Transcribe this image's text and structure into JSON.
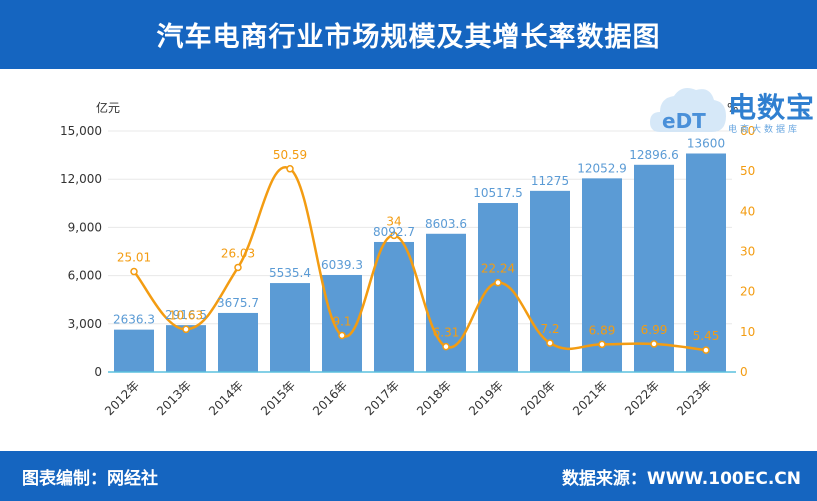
{
  "header": {
    "title": "汽车电商行业市场规模及其增长率数据图"
  },
  "footer": {
    "left": "图表编制：网经社",
    "right": "数据来源：WWW.100EC.CN"
  },
  "logo": {
    "main": "电数宝",
    "sub": "电商大数据库",
    "mark": "eDT"
  },
  "colors": {
    "header_bg": "#1565c0",
    "bar": "#5b9bd5",
    "line": "#f39c12",
    "bar_label": "#5b9bd5",
    "line_label": "#f39c12"
  },
  "chart_data": {
    "type": "bar",
    "categories": [
      "2012年",
      "2013年",
      "2014年",
      "2015年",
      "2016年",
      "2017年",
      "2018年",
      "2019年",
      "2020年",
      "2021年",
      "2022年",
      "2023年"
    ],
    "series": [
      {
        "values": [
          2636.3,
          2916.5,
          3675.7,
          5535.4,
          6039.3,
          8092.7,
          8603.6,
          10517.5,
          11275,
          12052.9,
          12896.6,
          13600
        ],
        "axis": "left",
        "type": "bar"
      },
      {
        "values": [
          25.01,
          10.63,
          26.03,
          50.59,
          9.1,
          34,
          6.31,
          22.24,
          7.2,
          6.89,
          6.99,
          5.45
        ],
        "axis": "right",
        "type": "line",
        "smooth": true
      }
    ],
    "bar_labels": [
      "2636.3",
      "2916.5",
      "3675.7",
      "5535.4",
      "6039.3",
      "8092.7",
      "8603.6",
      "10517.5",
      "11275",
      "12052.9",
      "12896.6",
      "13600"
    ],
    "line_labels": [
      "25.01",
      "10.63",
      "26.03",
      "50.59",
      "9.1",
      "34",
      "6.31",
      "22.24",
      "7.2",
      "6.89",
      "6.99",
      "5.45"
    ],
    "y_left": {
      "label": "亿元",
      "ylim": [
        0,
        15000
      ],
      "ticks": [
        "0",
        "3,000",
        "6,000",
        "9,000",
        "12,000",
        "15,000"
      ],
      "tick_values": [
        0,
        3000,
        6000,
        9000,
        12000,
        15000
      ]
    },
    "y_right": {
      "label": "%",
      "ylim": [
        0,
        60
      ],
      "ticks": [
        "0",
        "10",
        "20",
        "30",
        "40",
        "50",
        "60"
      ],
      "tick_values": [
        0,
        10,
        20,
        30,
        40,
        50,
        60
      ]
    },
    "grid": true,
    "legend": "none"
  }
}
